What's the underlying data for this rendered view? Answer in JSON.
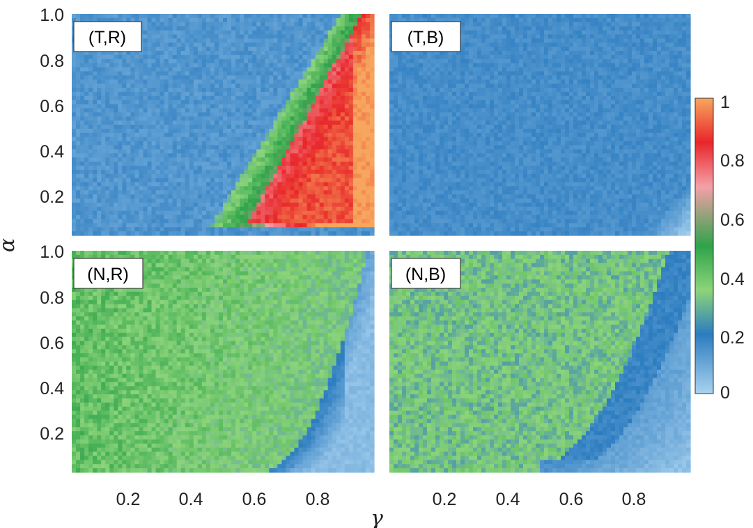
{
  "chart_data": {
    "type": "heatmap",
    "xlabel": "γ",
    "ylabel": "α",
    "xlim": [
      0.02,
      0.98
    ],
    "ylim": [
      0.02,
      1.0
    ],
    "x_ticks": [
      "0.2",
      "0.4",
      "0.6",
      "0.8"
    ],
    "y_ticks": [
      "1.0",
      "0.8",
      "0.6",
      "0.4",
      "0.2"
    ],
    "colorbar": {
      "range": [
        0,
        1
      ],
      "ticks": [
        "1",
        "0.8",
        "0.6",
        "0.4",
        "0.2",
        "0"
      ],
      "stops": [
        {
          "v": 0.0,
          "color": "#a9d2ef"
        },
        {
          "v": 0.2,
          "color": "#2c7cc0"
        },
        {
          "v": 0.35,
          "color": "#8cd47a"
        },
        {
          "v": 0.5,
          "color": "#2ea34a"
        },
        {
          "v": 0.7,
          "color": "#f4a0a8"
        },
        {
          "v": 0.85,
          "color": "#e8262a"
        },
        {
          "v": 1.0,
          "color": "#f7a65e"
        }
      ]
    },
    "panels": [
      {
        "label": "(T,R)",
        "pattern": "TR"
      },
      {
        "label": "(T,B)",
        "pattern": "TB"
      },
      {
        "label": "(N,R)",
        "pattern": "NR"
      },
      {
        "label": "(N,B)",
        "pattern": "NB"
      }
    ]
  }
}
